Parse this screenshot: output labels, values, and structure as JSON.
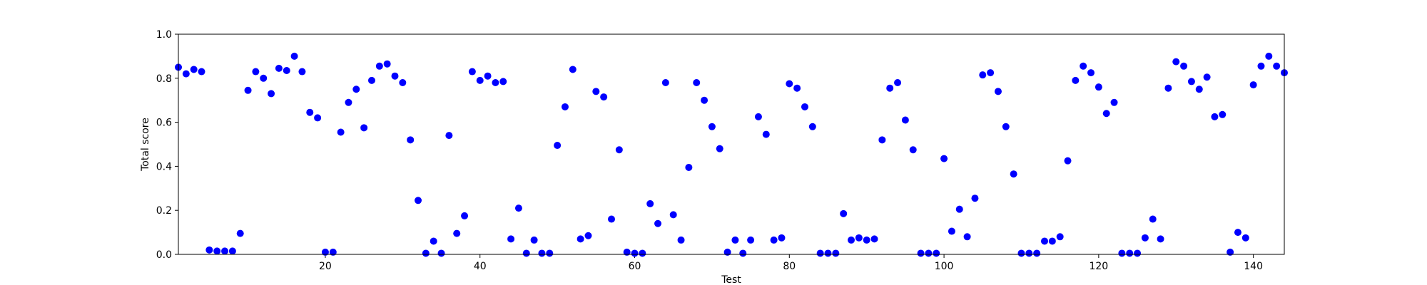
{
  "chart_data": {
    "type": "scatter",
    "title": "",
    "xlabel": "Test",
    "ylabel": "Total score",
    "xlim": [
      1,
      144
    ],
    "ylim": [
      0.0,
      1.0
    ],
    "xticks": [
      20,
      40,
      60,
      80,
      100,
      120,
      140
    ],
    "yticks": [
      0.0,
      0.2,
      0.4,
      0.6,
      0.8,
      1.0
    ],
    "xtick_labels": [
      "20",
      "40",
      "60",
      "80",
      "100",
      "120",
      "140"
    ],
    "ytick_labels": [
      "0.0",
      "0.2",
      "0.4",
      "0.6",
      "0.8",
      "1.0"
    ],
    "grid": false,
    "marker_color": "#0000ff",
    "x": [
      1,
      2,
      3,
      4,
      5,
      6,
      7,
      8,
      9,
      10,
      11,
      12,
      13,
      14,
      15,
      16,
      17,
      18,
      19,
      20,
      21,
      22,
      23,
      24,
      25,
      26,
      27,
      28,
      29,
      30,
      31,
      32,
      33,
      34,
      35,
      36,
      37,
      38,
      39,
      40,
      41,
      42,
      43,
      44,
      45,
      46,
      47,
      48,
      49,
      50,
      51,
      52,
      53,
      54,
      55,
      56,
      57,
      58,
      59,
      60,
      61,
      62,
      63,
      64,
      65,
      66,
      67,
      68,
      69,
      70,
      71,
      72,
      73,
      74,
      75,
      76,
      77,
      78,
      79,
      80,
      81,
      82,
      83,
      84,
      85,
      86,
      87,
      88,
      89,
      90,
      91,
      92,
      93,
      94,
      95,
      96,
      97,
      98,
      99,
      100,
      101,
      102,
      103,
      104,
      105,
      106,
      107,
      108,
      109,
      110,
      111,
      112,
      113,
      114,
      115,
      116,
      117,
      118,
      119,
      120,
      121,
      122,
      123,
      124,
      125,
      126,
      127,
      128,
      129,
      130,
      131,
      132,
      133,
      134,
      135,
      136,
      137,
      138,
      139,
      140,
      141,
      142,
      143,
      144
    ],
    "y": [
      0.85,
      0.82,
      0.84,
      0.83,
      0.02,
      0.015,
      0.015,
      0.015,
      0.095,
      0.745,
      0.83,
      0.8,
      0.73,
      0.845,
      0.835,
      0.9,
      0.83,
      0.645,
      0.62,
      0.01,
      0.01,
      0.555,
      0.69,
      0.75,
      0.575,
      0.79,
      0.855,
      0.865,
      0.81,
      0.78,
      0.52,
      0.245,
      0.005,
      0.06,
      0.005,
      0.54,
      0.095,
      0.175,
      0.83,
      0.79,
      0.81,
      0.78,
      0.785,
      0.07,
      0.21,
      0.005,
      0.065,
      0.005,
      0.005,
      0.495,
      0.67,
      0.84,
      0.07,
      0.085,
      0.74,
      0.715,
      0.16,
      0.475,
      0.01,
      0.005,
      0.005,
      0.23,
      0.14,
      0.78,
      0.18,
      0.065,
      0.395,
      0.78,
      0.7,
      0.58,
      0.48,
      0.01,
      0.065,
      0.005,
      0.065,
      0.625,
      0.545,
      0.065,
      0.075,
      0.775,
      0.755,
      0.67,
      0.58,
      0.005,
      0.005,
      0.005,
      0.185,
      0.065,
      0.075,
      0.065,
      0.07,
      0.52,
      0.755,
      0.78,
      0.61,
      0.475,
      0.005,
      0.005,
      0.005,
      0.435,
      0.105,
      0.205,
      0.08,
      0.255,
      0.815,
      0.825,
      0.74,
      0.58,
      0.365,
      0.005,
      0.005,
      0.005,
      0.06,
      0.06,
      0.08,
      0.425,
      0.79,
      0.855,
      0.825,
      0.76,
      0.64,
      0.69,
      0.005,
      0.005,
      0.005,
      0.075,
      0.16,
      0.07,
      0.755,
      0.875,
      0.855,
      0.785,
      0.75,
      0.805,
      0.625,
      0.635,
      0.01,
      0.1,
      0.075,
      0.77,
      0.855,
      0.9,
      0.855,
      0.825
    ]
  }
}
